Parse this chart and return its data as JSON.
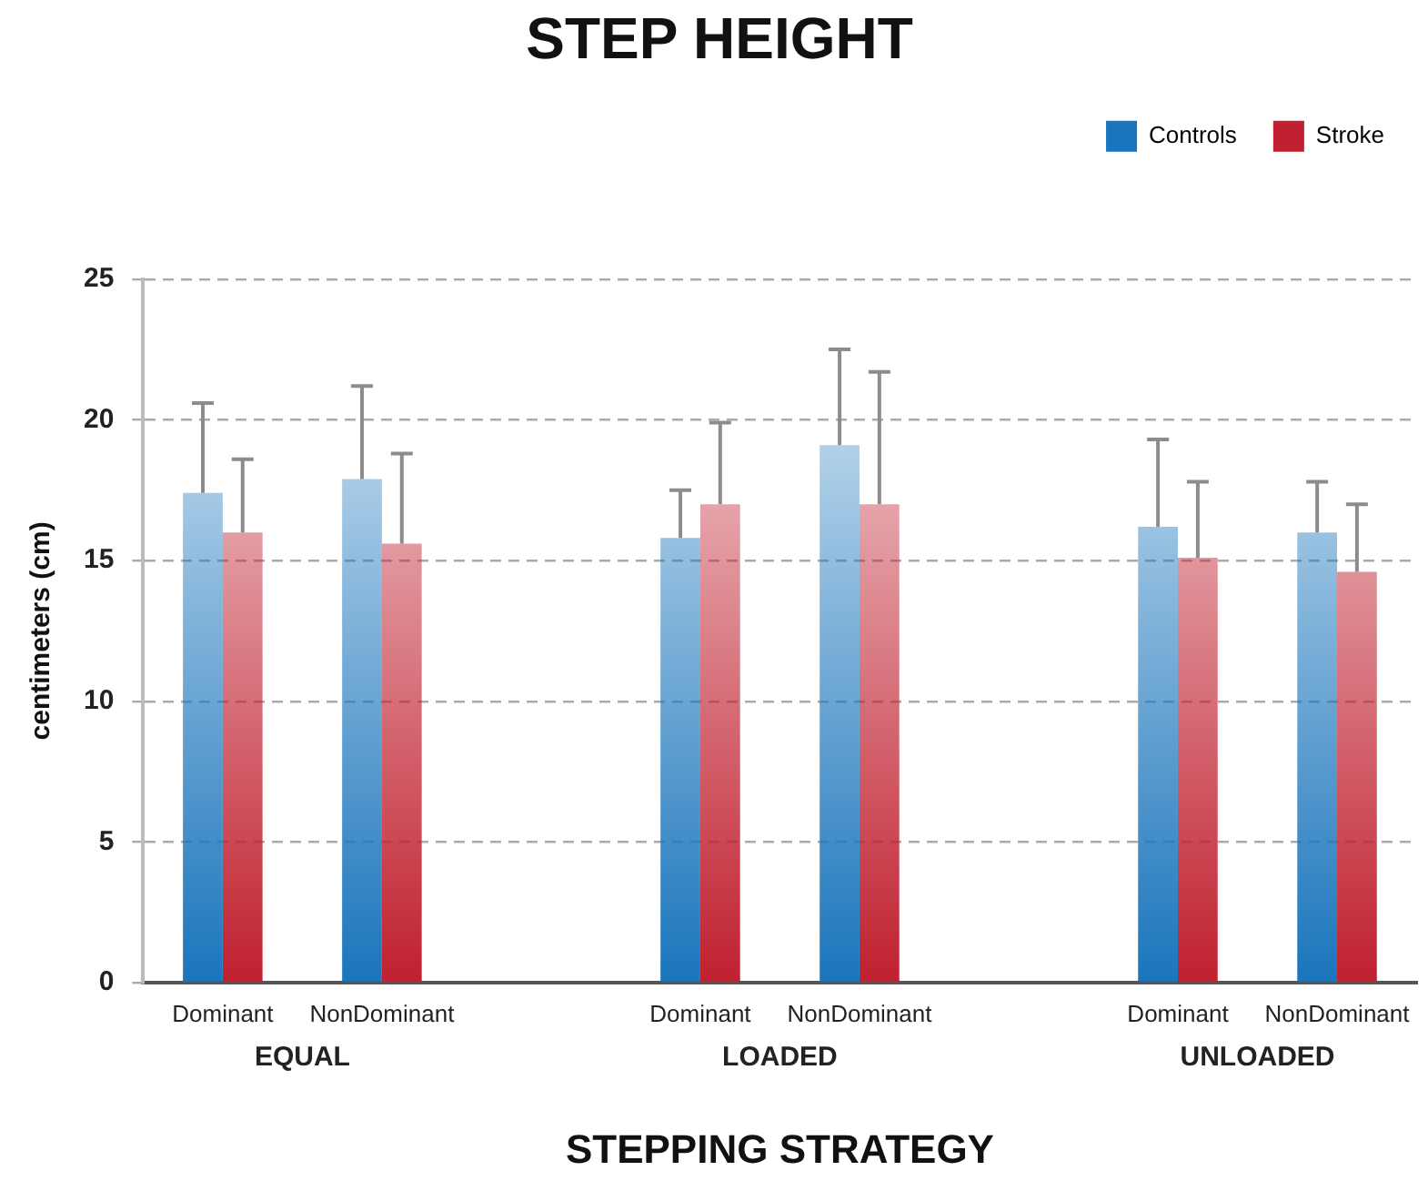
{
  "chart_data": {
    "type": "bar",
    "title": "STEP HEIGHT",
    "xlabel": "STEPPING STRATEGY",
    "ylabel": "centimeters (cm)",
    "categories": [
      "Dominant",
      "NonDominant",
      null,
      "Dominant",
      "NonDominant",
      null,
      "Dominant",
      "NonDominant"
    ],
    "annotations": [
      "EQUAL",
      "LOADED",
      "UNLOADED"
    ],
    "series": [
      {
        "name": "Controls",
        "color": "#1a75bc",
        "values": [
          17.4,
          17.9,
          null,
          15.8,
          19.1,
          null,
          16.2,
          16.0
        ],
        "errors": [
          3.2,
          3.3,
          null,
          1.7,
          3.4,
          null,
          3.1,
          1.8
        ]
      },
      {
        "name": "Stroke",
        "color": "#c0202f",
        "values": [
          16.0,
          15.6,
          null,
          17.0,
          17.0,
          null,
          15.1,
          14.6
        ],
        "errors": [
          2.6,
          3.2,
          null,
          2.9,
          4.7,
          null,
          2.7,
          2.4
        ]
      }
    ],
    "ylim": [
      0,
      25
    ],
    "yticks": [
      0,
      5,
      10,
      15,
      20,
      25
    ],
    "grid": "y",
    "legend": "top right"
  }
}
